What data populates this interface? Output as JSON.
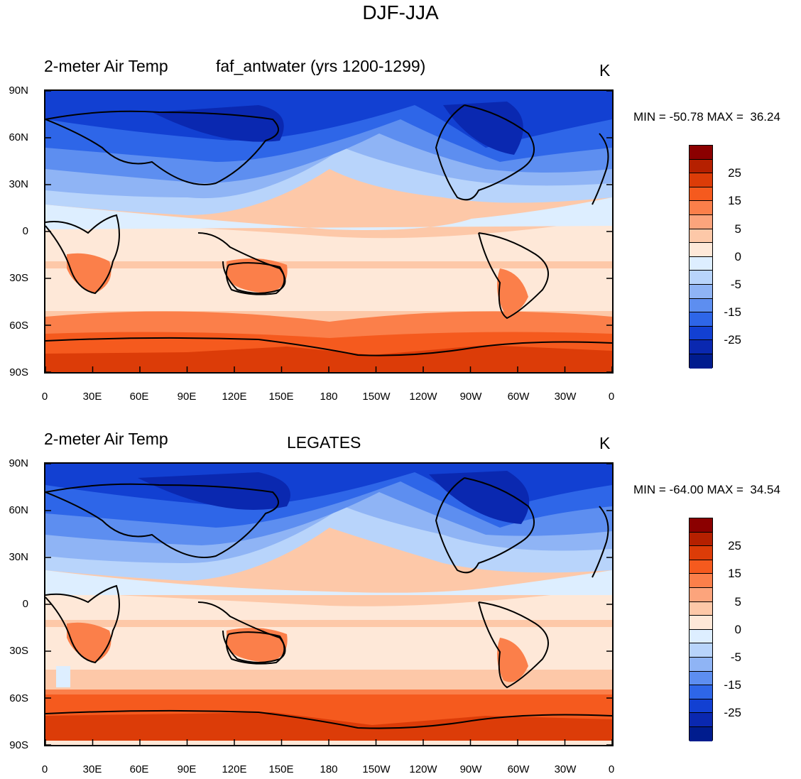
{
  "title": "DJF-JJA",
  "panels": [
    {
      "left_label": "2-meter Air Temp",
      "center_label": "faf_antwater (yrs 1200-1299)",
      "units": "K",
      "minmax": "MIN = -50.78 MAX =  36.24"
    },
    {
      "left_label": "2-meter Air Temp",
      "center_label": "LEGATES",
      "units": "K",
      "minmax": "MIN = -64.00 MAX =  34.54"
    }
  ],
  "lat_labels": [
    "90N",
    "60N",
    "30N",
    "0",
    "30S",
    "60S",
    "90S"
  ],
  "lon_labels": [
    "0",
    "30E",
    "60E",
    "90E",
    "120E",
    "150E",
    "180",
    "150W",
    "120W",
    "90W",
    "60W",
    "30W",
    "0"
  ],
  "colorbar": {
    "colors": [
      "#8b0000",
      "#b52000",
      "#dc3c08",
      "#f55a1e",
      "#fb7f4a",
      "#fca47c",
      "#fdc8a8",
      "#fee8d8",
      "#ddeeff",
      "#b8d4fb",
      "#8fb4f5",
      "#5d8ef0",
      "#2e66e8",
      "#1240d2",
      "#0a28b0",
      "#001c8e"
    ],
    "labels": [
      "25",
      "15",
      "5",
      "0",
      "-5",
      "-15",
      "-25"
    ]
  },
  "legend_levels": {
    "warm4": "#dc3c08",
    "warm3": "#f55a1e",
    "warm2": "#fb7f4a",
    "warm1": "#fca47c",
    "warm0": "#fdc8a8",
    "neutral": "#fee8d8",
    "cool0": "#ddeeff",
    "cool1": "#b8d4fb",
    "cool2": "#8fb4f5",
    "cool3": "#5d8ef0",
    "cool4": "#2e66e8",
    "cool5": "#1240d2",
    "cool6": "#0a28b0"
  }
}
